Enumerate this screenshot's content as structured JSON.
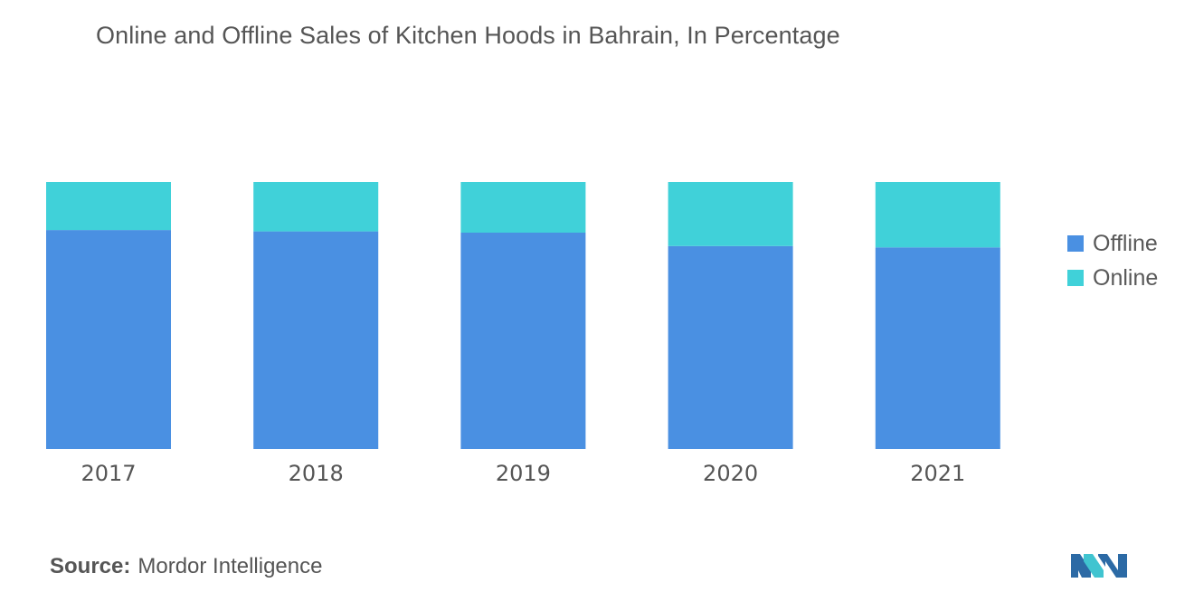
{
  "chart_data": {
    "type": "bar",
    "stacked": true,
    "normalized": true,
    "title": "Online and Offline Sales of Kitchen Hoods in Bahrain, In Percentage",
    "xlabel": "",
    "ylabel": "",
    "ylim": [
      0,
      100
    ],
    "grid": false,
    "legend_position": "right",
    "categories": [
      "2017",
      "2018",
      "2019",
      "2020",
      "2021"
    ],
    "series": [
      {
        "name": "Offline",
        "color": "#4a90e2",
        "values": [
          82,
          81.5,
          81,
          76,
          75.5
        ]
      },
      {
        "name": "Online",
        "color": "#40d1d9",
        "values": [
          18,
          18.5,
          19,
          24,
          24.5
        ]
      }
    ]
  },
  "source": {
    "label": "Source:",
    "text": "Mordor Intelligence"
  },
  "logo": {
    "icon": "mordor-intelligence-logo-icon",
    "colors": [
      "#2c6aa5",
      "#40c4d0"
    ]
  }
}
